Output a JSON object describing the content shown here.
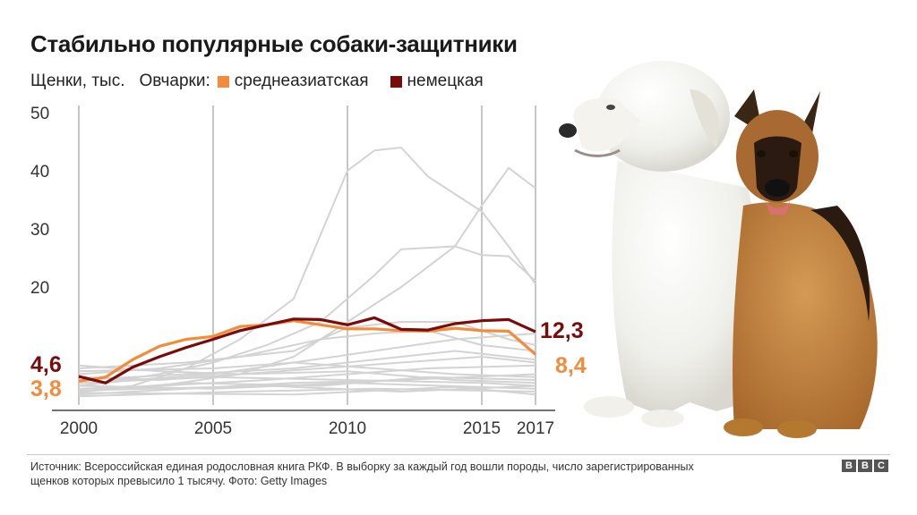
{
  "title": "Стабильно популярные собаки-защитники",
  "legend": {
    "unit": "Щенки, тыс.",
    "group": "Овчарки:",
    "items": [
      {
        "label": "среднеазиатская",
        "color": "#f28c3a"
      },
      {
        "label": "немецкая",
        "color": "#7a0b0b"
      }
    ]
  },
  "footer": "Источник: Всероссийская единая родословная книга РКФ. В выборку за каждый год вошли породы, число зарегистрированных щенков которых превысило 1 тысячу. Фото: Getty Images",
  "brand": [
    "B",
    "B",
    "C"
  ],
  "colors": {
    "grid": "#8c8c8c",
    "background_series": "#d3d3d3",
    "central_asian": "#f28c3a",
    "german": "#7a0b0b"
  },
  "chart_data": {
    "type": "line",
    "title": "Стабильно популярные собаки-защитники",
    "ylabel": "Щенки, тыс.",
    "xlabel": "",
    "xlim": [
      2000,
      2017
    ],
    "ylim": [
      0,
      50
    ],
    "y_ticks": [
      20,
      30,
      40,
      50
    ],
    "x_ticks": [
      2000,
      2005,
      2010,
      2015,
      2017
    ],
    "grid": "vertical",
    "series": [
      {
        "name": "среднеазиатская",
        "color": "#f28c3a",
        "x": [
          2000,
          2001,
          2002,
          2003,
          2004,
          2005,
          2006,
          2007,
          2008,
          2009,
          2010,
          2011,
          2012,
          2013,
          2014,
          2015,
          2016,
          2017
        ],
        "y": [
          3.8,
          4.5,
          7.5,
          9.8,
          11.0,
          11.5,
          13.2,
          13.5,
          14.2,
          13.5,
          12.8,
          12.8,
          12.5,
          12.4,
          12.9,
          12.5,
          12.4,
          8.4
        ],
        "start_label": "3,8",
        "end_label": "8,4"
      },
      {
        "name": "немецкая",
        "color": "#7a0b0b",
        "x": [
          2000,
          2001,
          2002,
          2003,
          2004,
          2005,
          2006,
          2007,
          2008,
          2009,
          2010,
          2011,
          2012,
          2013,
          2014,
          2015,
          2016,
          2017
        ],
        "y": [
          4.6,
          3.5,
          6.2,
          8.0,
          9.6,
          11.0,
          12.5,
          13.5,
          14.5,
          14.4,
          13.5,
          14.7,
          12.7,
          12.6,
          13.7,
          14.2,
          14.4,
          12.3
        ],
        "start_label": "4,6",
        "end_label": "12,3"
      }
    ],
    "background_series": [
      {
        "x": [
          2000,
          2002,
          2004,
          2006,
          2008,
          2010,
          2011,
          2012,
          2013,
          2015,
          2016,
          2017
        ],
        "y": [
          2,
          3,
          6,
          11,
          18,
          40,
          43.5,
          44,
          39,
          33,
          27,
          20.5
        ]
      },
      {
        "x": [
          2000,
          2003,
          2006,
          2008,
          2010,
          2012,
          2014,
          2015,
          2016,
          2017
        ],
        "y": [
          2,
          3,
          5,
          8,
          14,
          20,
          27,
          34,
          40.5,
          37
        ]
      },
      {
        "x": [
          2000,
          2003,
          2005,
          2007,
          2009,
          2011,
          2012,
          2014,
          2015,
          2016,
          2017
        ],
        "y": [
          3,
          5,
          7,
          10,
          14,
          22,
          26.5,
          27,
          25.5,
          25.3,
          21
        ]
      },
      {
        "x": [
          2000,
          2004,
          2006,
          2008,
          2010,
          2012,
          2014,
          2016,
          2017
        ],
        "y": [
          6,
          7,
          8,
          9,
          13,
          14,
          14,
          11,
          10
        ]
      },
      {
        "x": [
          2000,
          2003,
          2006,
          2009,
          2011,
          2013,
          2015,
          2017
        ],
        "y": [
          5,
          6,
          8,
          11,
          12,
          12.5,
          10,
          9
        ]
      },
      {
        "x": [
          2000,
          2002,
          2005,
          2008,
          2011,
          2014,
          2017
        ],
        "y": [
          3,
          4,
          5,
          7,
          9,
          11,
          12
        ]
      },
      {
        "x": [
          2000,
          2003,
          2006,
          2009,
          2012,
          2015,
          2017
        ],
        "y": [
          6.5,
          5.5,
          5,
          6,
          7,
          8,
          7
        ]
      },
      {
        "x": [
          2000,
          2004,
          2008,
          2012,
          2014,
          2017
        ],
        "y": [
          4,
          5,
          6,
          8,
          9,
          7.5
        ]
      },
      {
        "x": [
          2000,
          2003,
          2007,
          2010,
          2013,
          2017
        ],
        "y": [
          2.5,
          3,
          4,
          5,
          6,
          6.5
        ]
      },
      {
        "x": [
          2000,
          2005,
          2008,
          2011,
          2014,
          2017
        ],
        "y": [
          5.5,
          6,
          7,
          6,
          5,
          4.5
        ]
      },
      {
        "x": [
          2000,
          2004,
          2008,
          2012,
          2017
        ],
        "y": [
          1.5,
          2.5,
          3.5,
          4,
          5
        ]
      },
      {
        "x": [
          2000,
          2003,
          2006,
          2010,
          2014,
          2017
        ],
        "y": [
          4.5,
          4,
          5,
          5.5,
          4,
          3.5
        ]
      },
      {
        "x": [
          2000,
          2005,
          2010,
          2015,
          2017
        ],
        "y": [
          3.5,
          4.5,
          4,
          3.5,
          3
        ]
      },
      {
        "x": [
          2000,
          2004,
          2009,
          2013,
          2017
        ],
        "y": [
          2,
          3.5,
          3,
          4.5,
          4
        ]
      },
      {
        "x": [
          2000,
          2006,
          2011,
          2017
        ],
        "y": [
          1.2,
          2,
          2.5,
          2
        ]
      },
      {
        "x": [
          2000,
          2005,
          2010,
          2017
        ],
        "y": [
          3,
          2.5,
          3.5,
          2.5
        ]
      },
      {
        "x": [
          2000,
          2007,
          2012,
          2017
        ],
        "y": [
          2.2,
          3,
          2,
          3
        ]
      },
      {
        "x": [
          2000,
          2008,
          2014,
          2017
        ],
        "y": [
          1.8,
          1.5,
          2.8,
          1.5
        ]
      }
    ]
  }
}
